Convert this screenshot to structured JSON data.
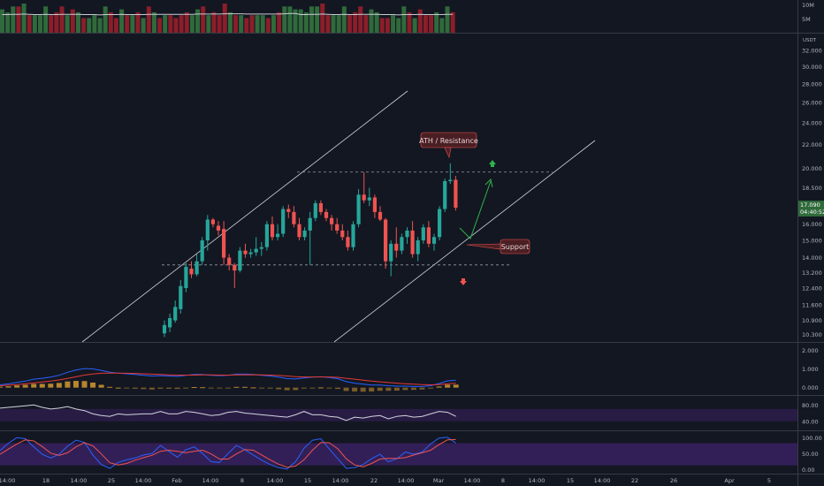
{
  "chart_data": {
    "type": "candlestick",
    "currency": "USDT",
    "volume_axis": [
      "10M",
      "5M"
    ],
    "price_axis": {
      "ticks": [
        "32.000",
        "30.000",
        "28.000",
        "26.000",
        "24.000",
        "22.000",
        "20.000",
        "18.500",
        "17.000",
        "16.000",
        "15.000",
        "14.000",
        "13.200",
        "12.400",
        "11.600",
        "10.900",
        "10.300"
      ],
      "scale": "log",
      "range": [
        10.0,
        34.0
      ]
    },
    "last_price": {
      "value": "17.090",
      "countdown": "04:40:52"
    },
    "time_axis": [
      "14:00",
      "18",
      "14:00",
      "25",
      "14:00",
      "Feb",
      "14:00",
      "8",
      "14:00",
      "15",
      "14:00",
      "22",
      "14:00",
      "Mar",
      "14:00",
      "8",
      "14:00",
      "15",
      "14:00",
      "22",
      "26",
      "Apr",
      "5"
    ],
    "candles": [
      {
        "o": 10.35,
        "h": 10.9,
        "l": 10.2,
        "c": 10.7
      },
      {
        "o": 10.6,
        "h": 11.2,
        "l": 10.4,
        "c": 11.0
      },
      {
        "o": 10.9,
        "h": 11.8,
        "l": 10.8,
        "c": 11.5
      },
      {
        "o": 11.4,
        "h": 12.8,
        "l": 11.2,
        "c": 12.5
      },
      {
        "o": 12.4,
        "h": 13.7,
        "l": 12.2,
        "c": 13.5
      },
      {
        "o": 13.4,
        "h": 13.8,
        "l": 12.9,
        "c": 13.1
      },
      {
        "o": 13.1,
        "h": 14.2,
        "l": 13.0,
        "c": 13.8
      },
      {
        "o": 13.8,
        "h": 15.2,
        "l": 13.6,
        "c": 15.0
      },
      {
        "o": 15.0,
        "h": 16.6,
        "l": 14.4,
        "c": 16.3
      },
      {
        "o": 16.3,
        "h": 16.4,
        "l": 15.8,
        "c": 16.0
      },
      {
        "o": 15.9,
        "h": 16.2,
        "l": 15.3,
        "c": 15.6
      },
      {
        "o": 15.7,
        "h": 16.2,
        "l": 13.6,
        "c": 14.0
      },
      {
        "o": 14.0,
        "h": 14.2,
        "l": 13.3,
        "c": 13.6
      },
      {
        "o": 13.6,
        "h": 13.7,
        "l": 12.4,
        "c": 13.3
      },
      {
        "o": 13.3,
        "h": 14.6,
        "l": 13.2,
        "c": 14.4
      },
      {
        "o": 14.4,
        "h": 14.8,
        "l": 14.0,
        "c": 14.2
      },
      {
        "o": 14.2,
        "h": 14.5,
        "l": 14.0,
        "c": 14.3
      },
      {
        "o": 14.3,
        "h": 15.2,
        "l": 14.1,
        "c": 14.5
      },
      {
        "o": 14.5,
        "h": 14.9,
        "l": 14.1,
        "c": 14.6
      },
      {
        "o": 14.6,
        "h": 16.2,
        "l": 14.4,
        "c": 16.0
      },
      {
        "o": 16.0,
        "h": 16.5,
        "l": 15.0,
        "c": 15.2
      },
      {
        "o": 15.2,
        "h": 16.0,
        "l": 15.0,
        "c": 15.4
      },
      {
        "o": 15.4,
        "h": 17.2,
        "l": 15.2,
        "c": 17.0
      },
      {
        "o": 17.0,
        "h": 17.3,
        "l": 16.4,
        "c": 16.8
      },
      {
        "o": 16.8,
        "h": 17.2,
        "l": 15.8,
        "c": 16.0
      },
      {
        "o": 16.0,
        "h": 16.4,
        "l": 15.0,
        "c": 15.2
      },
      {
        "o": 15.2,
        "h": 15.8,
        "l": 15.0,
        "c": 15.6
      },
      {
        "o": 15.6,
        "h": 16.8,
        "l": 13.6,
        "c": 16.4
      },
      {
        "o": 16.4,
        "h": 17.6,
        "l": 16.2,
        "c": 17.4
      },
      {
        "o": 17.4,
        "h": 17.6,
        "l": 16.6,
        "c": 16.8
      },
      {
        "o": 16.8,
        "h": 17.0,
        "l": 16.2,
        "c": 16.4
      },
      {
        "o": 16.4,
        "h": 16.6,
        "l": 15.6,
        "c": 16.0
      },
      {
        "o": 16.0,
        "h": 16.4,
        "l": 15.4,
        "c": 15.6
      },
      {
        "o": 15.6,
        "h": 16.0,
        "l": 15.0,
        "c": 15.2
      },
      {
        "o": 15.2,
        "h": 15.6,
        "l": 14.4,
        "c": 14.6
      },
      {
        "o": 14.6,
        "h": 16.2,
        "l": 14.4,
        "c": 16.0
      },
      {
        "o": 16.0,
        "h": 18.4,
        "l": 15.8,
        "c": 18.0
      },
      {
        "o": 18.0,
        "h": 19.7,
        "l": 17.4,
        "c": 17.6
      },
      {
        "o": 17.6,
        "h": 18.5,
        "l": 17.2,
        "c": 17.8
      },
      {
        "o": 17.8,
        "h": 18.0,
        "l": 16.4,
        "c": 16.8
      },
      {
        "o": 16.8,
        "h": 17.2,
        "l": 16.2,
        "c": 16.3
      },
      {
        "o": 16.3,
        "h": 16.4,
        "l": 13.4,
        "c": 13.8
      },
      {
        "o": 13.8,
        "h": 15.0,
        "l": 13.0,
        "c": 14.8
      },
      {
        "o": 14.8,
        "h": 15.8,
        "l": 14.0,
        "c": 14.4
      },
      {
        "o": 14.4,
        "h": 15.4,
        "l": 14.2,
        "c": 15.2
      },
      {
        "o": 15.2,
        "h": 15.8,
        "l": 14.8,
        "c": 15.6
      },
      {
        "o": 15.6,
        "h": 16.2,
        "l": 14.0,
        "c": 14.2
      },
      {
        "o": 14.2,
        "h": 15.2,
        "l": 13.8,
        "c": 15.0
      },
      {
        "o": 15.0,
        "h": 16.0,
        "l": 14.8,
        "c": 15.8
      },
      {
        "o": 15.8,
        "h": 16.2,
        "l": 14.6,
        "c": 14.8
      },
      {
        "o": 14.8,
        "h": 15.4,
        "l": 14.4,
        "c": 15.2
      },
      {
        "o": 15.2,
        "h": 17.2,
        "l": 15.0,
        "c": 17.0
      },
      {
        "o": 17.0,
        "h": 19.2,
        "l": 16.8,
        "c": 19.0
      },
      {
        "o": 19.0,
        "h": 20.4,
        "l": 18.8,
        "c": 19.1
      },
      {
        "o": 19.1,
        "h": 19.4,
        "l": 16.9,
        "c": 17.09
      }
    ],
    "volume": [
      0.8,
      0.7,
      0.9,
      0.9,
      1.0,
      0.6,
      0.6,
      0.6,
      0.9,
      0.6,
      0.7,
      0.9,
      0.6,
      0.8,
      0.7,
      0.5,
      0.5,
      0.6,
      0.5,
      0.9,
      0.7,
      0.5,
      0.8,
      0.6,
      0.6,
      0.7,
      0.5,
      0.9,
      0.7,
      0.5,
      0.6,
      0.6,
      0.5,
      0.6,
      0.7,
      0.6,
      0.8,
      0.9,
      0.6,
      0.7,
      0.6,
      1.0,
      0.7,
      0.6,
      0.6,
      0.5,
      0.6,
      0.6,
      0.6,
      0.5,
      0.6,
      0.7,
      0.9,
      0.9,
      0.8
    ],
    "volume_ma": [
      0.62,
      0.62,
      0.63,
      0.63,
      0.64,
      0.63,
      0.62,
      0.62,
      0.63,
      0.62,
      0.62,
      0.63,
      0.63,
      0.63,
      0.63,
      0.62,
      0.62,
      0.62,
      0.61,
      0.62,
      0.62,
      0.62,
      0.63,
      0.62,
      0.62,
      0.62,
      0.62,
      0.63,
      0.63,
      0.63,
      0.63,
      0.63,
      0.63,
      0.63,
      0.63,
      0.63,
      0.64,
      0.64,
      0.64,
      0.64,
      0.64,
      0.65,
      0.65,
      0.65,
      0.65,
      0.64,
      0.64,
      0.64,
      0.64,
      0.64,
      0.64,
      0.64,
      0.65,
      0.66,
      0.66
    ],
    "macd": {
      "axis": [
        "2.000",
        "1.000",
        "0.000"
      ],
      "range": [
        -0.3,
        2.3
      ],
      "macd": [
        0.15,
        0.2,
        0.28,
        0.35,
        0.45,
        0.5,
        0.56,
        0.66,
        0.82,
        0.94,
        1.02,
        1.0,
        0.92,
        0.82,
        0.78,
        0.74,
        0.7,
        0.66,
        0.62,
        0.64,
        0.62,
        0.6,
        0.66,
        0.7,
        0.7,
        0.66,
        0.64,
        0.66,
        0.72,
        0.72,
        0.7,
        0.66,
        0.62,
        0.56,
        0.48,
        0.46,
        0.52,
        0.56,
        0.58,
        0.54,
        0.48,
        0.32,
        0.24,
        0.18,
        0.14,
        0.14,
        0.1,
        0.08,
        0.08,
        0.06,
        0.06,
        0.1,
        0.22,
        0.36,
        0.4
      ],
      "signal": [
        0.1,
        0.13,
        0.16,
        0.2,
        0.25,
        0.3,
        0.35,
        0.41,
        0.49,
        0.58,
        0.67,
        0.73,
        0.77,
        0.78,
        0.78,
        0.77,
        0.76,
        0.74,
        0.72,
        0.7,
        0.68,
        0.67,
        0.67,
        0.67,
        0.68,
        0.68,
        0.67,
        0.67,
        0.68,
        0.68,
        0.69,
        0.68,
        0.67,
        0.65,
        0.62,
        0.59,
        0.57,
        0.57,
        0.57,
        0.57,
        0.55,
        0.5,
        0.45,
        0.4,
        0.35,
        0.31,
        0.27,
        0.24,
        0.21,
        0.18,
        0.16,
        0.15,
        0.16,
        0.2,
        0.24
      ],
      "hist": [
        0.05,
        0.07,
        0.12,
        0.15,
        0.2,
        0.2,
        0.21,
        0.25,
        0.33,
        0.36,
        0.35,
        0.27,
        0.15,
        0.04,
        0.0,
        -0.03,
        -0.06,
        -0.08,
        -0.1,
        -0.06,
        -0.06,
        -0.07,
        -0.01,
        0.03,
        0.02,
        -0.02,
        -0.03,
        -0.01,
        0.04,
        0.04,
        0.01,
        -0.02,
        -0.05,
        -0.09,
        -0.14,
        -0.13,
        -0.05,
        -0.01,
        0.01,
        -0.03,
        -0.07,
        -0.18,
        -0.21,
        -0.22,
        -0.21,
        -0.17,
        -0.17,
        -0.16,
        -0.13,
        -0.12,
        -0.1,
        -0.05,
        0.06,
        0.16,
        0.16
      ]
    },
    "rsi": {
      "axis": [
        "80.00",
        "40.00"
      ],
      "range": [
        20,
        100
      ],
      "band": [
        40,
        70
      ],
      "values": [
        72,
        74,
        76,
        78,
        80,
        74,
        70,
        72,
        76,
        70,
        66,
        58,
        54,
        52,
        58,
        56,
        57,
        58,
        58,
        64,
        58,
        58,
        64,
        62,
        58,
        54,
        56,
        62,
        64,
        60,
        58,
        56,
        54,
        52,
        50,
        56,
        64,
        56,
        56,
        52,
        50,
        42,
        50,
        48,
        52,
        54,
        46,
        52,
        54,
        50,
        52,
        58,
        64,
        62,
        52
      ]
    },
    "stoch": {
      "axis": [
        "100.00",
        "50.00",
        "0.00"
      ],
      "range": [
        0,
        110
      ],
      "band": [
        20,
        80
      ],
      "k": [
        60,
        80,
        95,
        92,
        70,
        50,
        40,
        50,
        72,
        88,
        82,
        48,
        22,
        12,
        28,
        35,
        40,
        48,
        52,
        74,
        58,
        42,
        62,
        70,
        52,
        30,
        28,
        52,
        74,
        62,
        48,
        34,
        22,
        14,
        10,
        30,
        66,
        88,
        92,
        64,
        38,
        12,
        14,
        22,
        38,
        50,
        30,
        38,
        56,
        50,
        56,
        78,
        94,
        96,
        80
      ],
      "d": [
        50,
        64,
        78,
        89,
        86,
        71,
        53,
        47,
        54,
        70,
        81,
        73,
        51,
        27,
        21,
        25,
        34,
        41,
        47,
        58,
        61,
        58,
        54,
        58,
        61,
        51,
        37,
        37,
        51,
        63,
        61,
        48,
        35,
        23,
        15,
        18,
        35,
        61,
        82,
        81,
        65,
        38,
        21,
        16,
        25,
        37,
        39,
        39,
        41,
        48,
        54,
        61,
        76,
        89,
        90
      ]
    },
    "annotations": {
      "resistance_label": "ATH / Resistance",
      "support_label": "Support",
      "resistance_level": 19.7,
      "support_level": 13.6,
      "bullish_arrow": "up-arrow",
      "bearish_arrow": "down-arrow"
    },
    "colors": {
      "up": "#26a69a",
      "down": "#ef5350",
      "vol_up": "#306a3c",
      "vol_down": "#8b1e2a",
      "macd": "#2962ff",
      "signal": "#e53935",
      "hist": "#bf8b2e",
      "rsi": "#d1d4dc",
      "band": "#3a2160",
      "stoch_k": "#2962ff",
      "stoch_d": "#ef5350",
      "arrow_green": "#2db34a",
      "label_bg": "#4a1f23",
      "last_price_bg": "#2f6a3a"
    }
  }
}
